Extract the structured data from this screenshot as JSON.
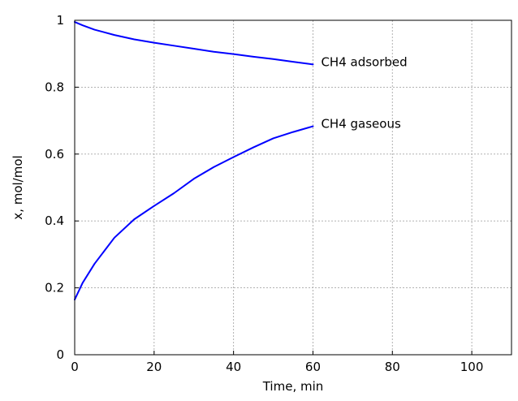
{
  "chart_data": {
    "type": "line",
    "xlabel": "Time, min",
    "ylabel": "x, mol/mol",
    "xlim": [
      0,
      110
    ],
    "ylim": [
      0,
      1
    ],
    "xticks": [
      0,
      20,
      40,
      60,
      80,
      100
    ],
    "yticks": [
      0,
      0.2,
      0.4,
      0.6,
      0.8,
      1
    ],
    "xtick_labels": [
      "0",
      "20",
      "40",
      "60",
      "80",
      "100"
    ],
    "ytick_labels": [
      "0",
      "0.2",
      "0.4",
      "0.6",
      "0.8",
      "1"
    ],
    "grid": true,
    "line_color": "#0000ff",
    "series": [
      {
        "name": "CH4 adsorbed",
        "x": [
          0,
          2,
          5,
          10,
          15,
          20,
          25,
          30,
          35,
          40,
          45,
          50,
          55,
          60
        ],
        "y": [
          0.995,
          0.985,
          0.972,
          0.956,
          0.943,
          0.933,
          0.924,
          0.915,
          0.906,
          0.899,
          0.891,
          0.884,
          0.876,
          0.868
        ]
      },
      {
        "name": "CH4 gaseous",
        "x": [
          0,
          2,
          5,
          10,
          15,
          20,
          25,
          30,
          35,
          40,
          45,
          50,
          55,
          60
        ],
        "y": [
          0.165,
          0.215,
          0.272,
          0.35,
          0.405,
          0.445,
          0.483,
          0.526,
          0.561,
          0.591,
          0.62,
          0.647,
          0.666,
          0.683
        ]
      }
    ]
  }
}
